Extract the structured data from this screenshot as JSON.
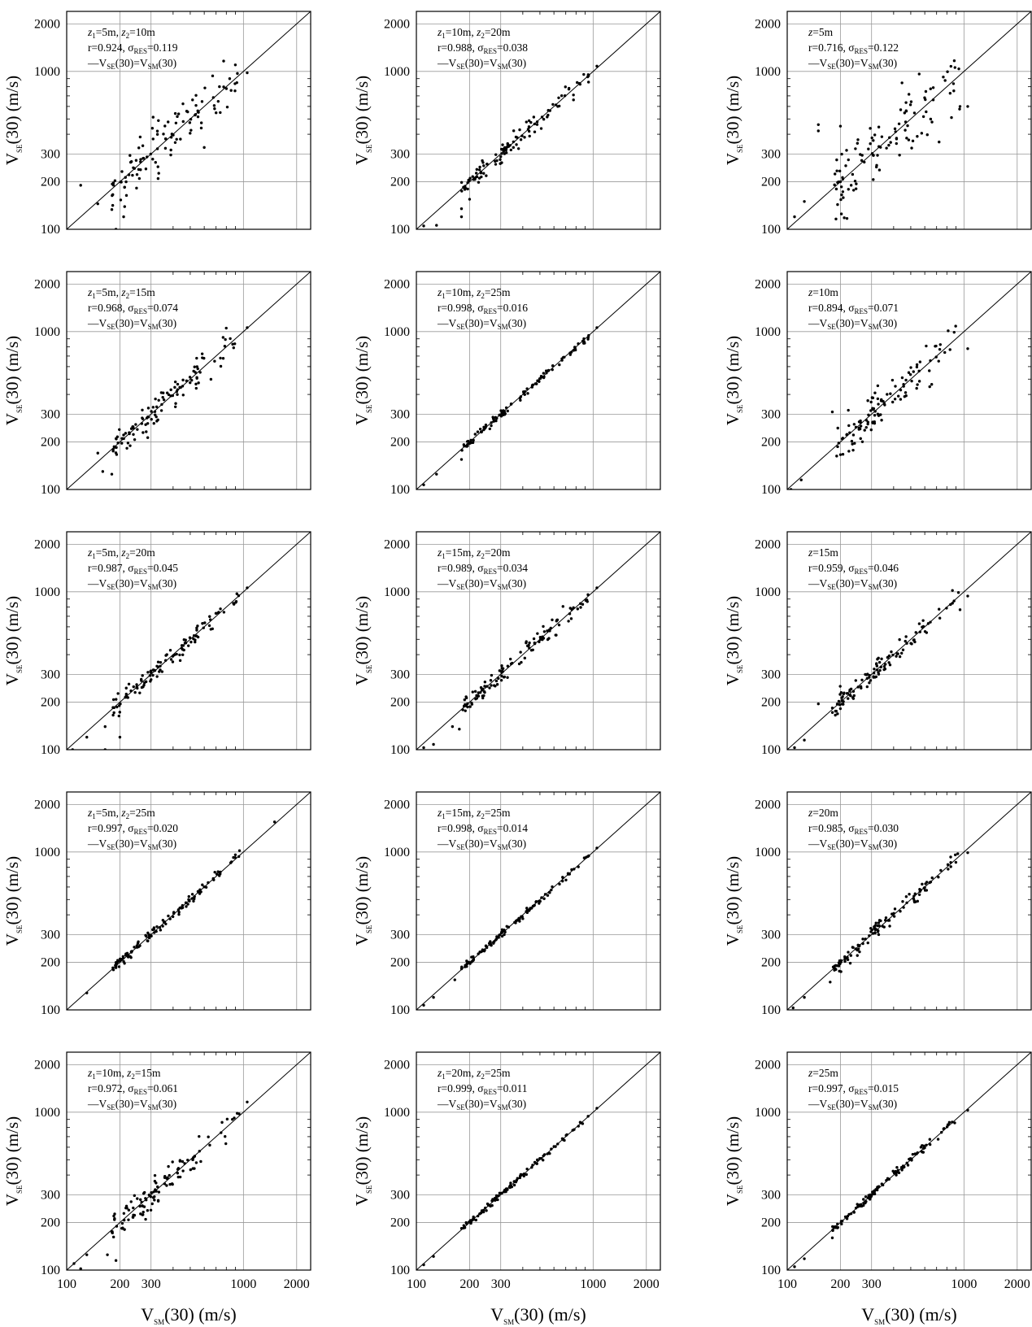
{
  "figure": {
    "xlabel": {
      "main": "V",
      "sub": "SM",
      "rest": "(30) (m/s)"
    },
    "ylabel": {
      "main": "V",
      "sub": "SE",
      "rest": "(30) (m/s)"
    },
    "tick_labels": [
      "100",
      "200",
      "300",
      "1000",
      "2000"
    ],
    "legend_text": {
      "prefix": "—V",
      "sub1": "SE",
      "mid": "(30)=V",
      "sub2": "SM",
      "end": "(30)"
    }
  },
  "chart_data": [
    {
      "type": "scatter",
      "scale": "log",
      "xlim": [
        100,
        2400
      ],
      "ylim": [
        100,
        2400
      ],
      "grid": true,
      "line1": {
        "z1": "5m",
        "z2": "10m"
      },
      "r": "0.924",
      "sigma": "0.119",
      "seed": 11,
      "spread": 0.085,
      "outliers": [
        [
          120,
          190
        ],
        [
          150,
          145
        ],
        [
          190,
          100
        ],
        [
          210,
          120
        ],
        [
          600,
          330
        ],
        [
          900,
          1100
        ],
        [
          1050,
          980
        ]
      ]
    },
    {
      "type": "scatter",
      "scale": "log",
      "xlim": [
        100,
        2400
      ],
      "ylim": [
        100,
        2400
      ],
      "grid": true,
      "line1": {
        "z1": "10m",
        "z2": "20m"
      },
      "r": "0.988",
      "sigma": "0.038",
      "seed": 12,
      "spread": 0.028,
      "outliers": [
        [
          110,
          105
        ],
        [
          130,
          106
        ],
        [
          180,
          120
        ],
        [
          180,
          135
        ],
        [
          200,
          155
        ],
        [
          1050,
          1080
        ]
      ]
    },
    {
      "type": "scatter",
      "scale": "log",
      "xlim": [
        100,
        2400
      ],
      "ylim": [
        100,
        2400
      ],
      "grid": true,
      "line1": {
        "z": "5m"
      },
      "r": "0.716",
      "sigma": "0.122",
      "seed": 13,
      "spread": 0.11,
      "outliers": [
        [
          110,
          120
        ],
        [
          125,
          150
        ],
        [
          150,
          420
        ],
        [
          150,
          460
        ],
        [
          200,
          450
        ],
        [
          200,
          200
        ],
        [
          850,
          510
        ],
        [
          950,
          600
        ],
        [
          1050,
          600
        ]
      ]
    },
    {
      "type": "scatter",
      "scale": "log",
      "xlim": [
        100,
        2400
      ],
      "ylim": [
        100,
        2400
      ],
      "grid": true,
      "line1": {
        "z1": "5m",
        "z2": "15m"
      },
      "r": "0.968",
      "sigma": "0.074",
      "seed": 14,
      "spread": 0.05,
      "outliers": [
        [
          150,
          170
        ],
        [
          160,
          130
        ],
        [
          180,
          125
        ],
        [
          1050,
          1060
        ],
        [
          880,
          790
        ]
      ]
    },
    {
      "type": "scatter",
      "scale": "log",
      "xlim": [
        100,
        2400
      ],
      "ylim": [
        100,
        2400
      ],
      "grid": true,
      "line1": {
        "z1": "10m",
        "z2": "25m"
      },
      "r": "0.998",
      "sigma": "0.016",
      "seed": 15,
      "spread": 0.012,
      "outliers": [
        [
          110,
          107
        ],
        [
          130,
          125
        ],
        [
          180,
          155
        ],
        [
          1050,
          1060
        ]
      ]
    },
    {
      "type": "scatter",
      "scale": "log",
      "xlim": [
        100,
        2400
      ],
      "ylim": [
        100,
        2400
      ],
      "grid": true,
      "line1": {
        "z": "10m"
      },
      "r": "0.894",
      "sigma": "0.071",
      "seed": 16,
      "spread": 0.065,
      "outliers": [
        [
          105,
          100
        ],
        [
          120,
          115
        ],
        [
          180,
          310
        ],
        [
          880,
          990
        ],
        [
          1050,
          780
        ]
      ]
    },
    {
      "type": "scatter",
      "scale": "log",
      "xlim": [
        100,
        2400
      ],
      "ylim": [
        100,
        2400
      ],
      "grid": true,
      "line1": {
        "z1": "5m",
        "z2": "20m"
      },
      "r": "0.987",
      "sigma": "0.045",
      "seed": 17,
      "spread": 0.03,
      "outliers": [
        [
          108,
          100
        ],
        [
          130,
          120
        ],
        [
          165,
          140
        ],
        [
          165,
          100
        ],
        [
          200,
          120
        ],
        [
          1050,
          1060
        ]
      ]
    },
    {
      "type": "scatter",
      "scale": "log",
      "xlim": [
        100,
        2400
      ],
      "ylim": [
        100,
        2400
      ],
      "grid": true,
      "line1": {
        "z1": "15m",
        "z2": "20m"
      },
      "r": "0.989",
      "sigma": "0.034",
      "seed": 18,
      "spread": 0.028,
      "outliers": [
        [
          110,
          103
        ],
        [
          125,
          108
        ],
        [
          160,
          140
        ],
        [
          175,
          135
        ],
        [
          1050,
          1060
        ]
      ]
    },
    {
      "type": "scatter",
      "scale": "log",
      "xlim": [
        100,
        2400
      ],
      "ylim": [
        100,
        2400
      ],
      "grid": true,
      "line1": {
        "z": "15m"
      },
      "r": "0.959",
      "sigma": "0.046",
      "seed": 19,
      "spread": 0.04,
      "outliers": [
        [
          110,
          103
        ],
        [
          125,
          115
        ],
        [
          150,
          195
        ],
        [
          1050,
          940
        ],
        [
          950,
          770
        ]
      ]
    },
    {
      "type": "scatter",
      "scale": "log",
      "xlim": [
        100,
        2400
      ],
      "ylim": [
        100,
        2400
      ],
      "grid": true,
      "line1": {
        "z1": "5m",
        "z2": "25m"
      },
      "r": "0.997",
      "sigma": "0.020",
      "seed": 20,
      "spread": 0.014,
      "outliers": [
        [
          130,
          128
        ],
        [
          1500,
          1550
        ],
        [
          900,
          960
        ],
        [
          950,
          1020
        ]
      ]
    },
    {
      "type": "scatter",
      "scale": "log",
      "xlim": [
        100,
        2400
      ],
      "ylim": [
        100,
        2400
      ],
      "grid": true,
      "line1": {
        "z1": "15m",
        "z2": "25m"
      },
      "r": "0.998",
      "sigma": "0.014",
      "seed": 21,
      "spread": 0.011,
      "outliers": [
        [
          110,
          107
        ],
        [
          125,
          120
        ],
        [
          165,
          155
        ],
        [
          1050,
          1060
        ]
      ]
    },
    {
      "type": "scatter",
      "scale": "log",
      "xlim": [
        100,
        2400
      ],
      "ylim": [
        100,
        2400
      ],
      "grid": true,
      "line1": {
        "z": "20m"
      },
      "r": "0.985",
      "sigma": "0.030",
      "seed": 22,
      "spread": 0.026,
      "outliers": [
        [
          108,
          103
        ],
        [
          125,
          120
        ],
        [
          175,
          150
        ],
        [
          1050,
          990
        ],
        [
          900,
          860
        ]
      ]
    },
    {
      "type": "scatter",
      "scale": "log",
      "xlim": [
        100,
        2400
      ],
      "ylim": [
        100,
        2400
      ],
      "grid": true,
      "line1": {
        "z1": "10m",
        "z2": "15m"
      },
      "r": "0.972",
      "sigma": "0.061",
      "seed": 23,
      "spread": 0.048,
      "outliers": [
        [
          110,
          110
        ],
        [
          120,
          102
        ],
        [
          130,
          125
        ],
        [
          170,
          125
        ],
        [
          190,
          115
        ],
        [
          1050,
          1160
        ]
      ]
    },
    {
      "type": "scatter",
      "scale": "log",
      "xlim": [
        100,
        2400
      ],
      "ylim": [
        100,
        2400
      ],
      "grid": true,
      "line1": {
        "z1": "20m",
        "z2": "25m"
      },
      "r": "0.999",
      "sigma": "0.011",
      "seed": 24,
      "spread": 0.009,
      "outliers": [
        [
          110,
          108
        ],
        [
          125,
          122
        ],
        [
          1050,
          1060
        ]
      ]
    },
    {
      "type": "scatter",
      "scale": "log",
      "xlim": [
        100,
        2400
      ],
      "ylim": [
        100,
        2400
      ],
      "grid": true,
      "line1": {
        "z": "25m"
      },
      "r": "0.997",
      "sigma": "0.015",
      "seed": 25,
      "spread": 0.012,
      "outliers": [
        [
          110,
          105
        ],
        [
          125,
          118
        ],
        [
          180,
          160
        ],
        [
          1050,
          1030
        ]
      ]
    }
  ]
}
